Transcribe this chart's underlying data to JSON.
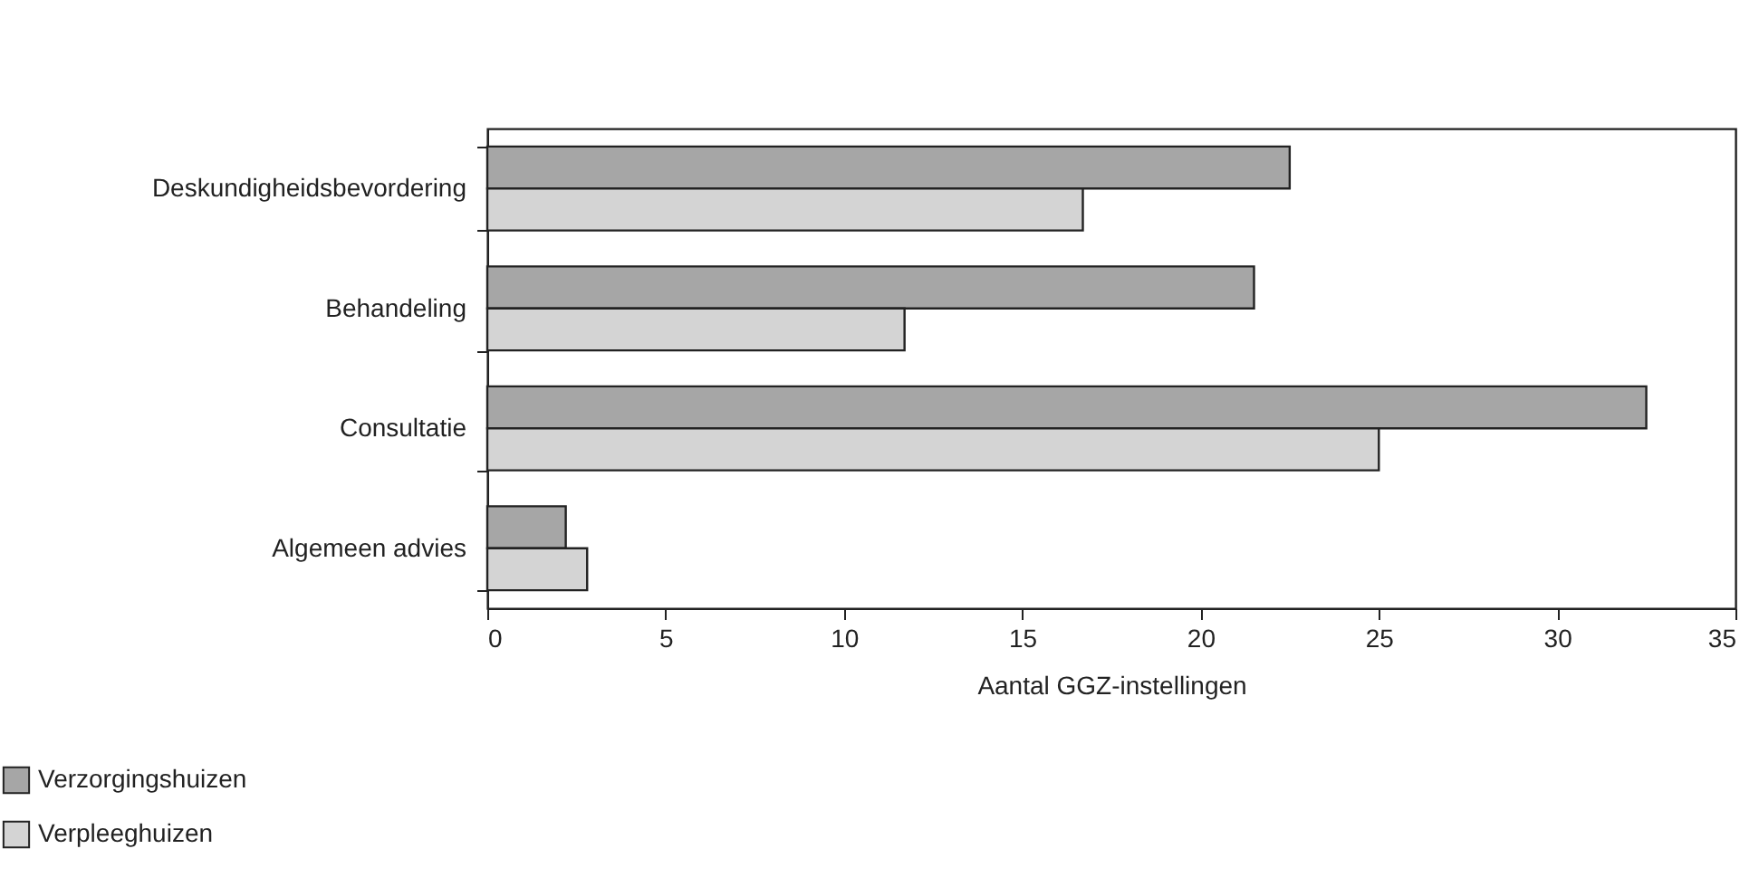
{
  "chart_data": {
    "type": "bar",
    "orientation": "horizontal",
    "xlabel": "Aantal GGZ-instellingen",
    "categories": [
      "Deskundigheidsbevordering",
      "Behandeling",
      "Consultatie",
      "Algemeen advies"
    ],
    "series": [
      {
        "name": "Verzorgingshuizen",
        "color": "#a6a6a6",
        "values": [
          22.5,
          21.5,
          32.5,
          2.2
        ]
      },
      {
        "name": "Verpleeghuizen",
        "color": "#d4d4d4",
        "values": [
          16.7,
          11.7,
          25.0,
          2.8
        ]
      }
    ],
    "xlim": [
      0,
      35
    ],
    "xticks": [
      0,
      5,
      10,
      15,
      20,
      25,
      30,
      35
    ],
    "legend": "bottom left"
  }
}
